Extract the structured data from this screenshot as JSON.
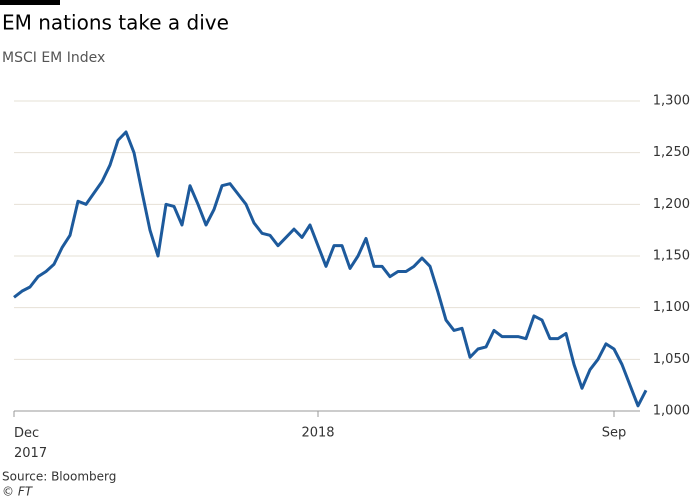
{
  "chart_data": {
    "type": "line",
    "title": "EM nations take a dive",
    "subtitle": "MSCI EM Index",
    "source": "Source: Bloomberg",
    "credit": "© FT",
    "categories": [
      "Dec 2017",
      null,
      null,
      null,
      null,
      null,
      null,
      null,
      null,
      null,
      null,
      null,
      null,
      null,
      null,
      null,
      null,
      null,
      null,
      null,
      null,
      null,
      null,
      null,
      null,
      null,
      null,
      null,
      null,
      null,
      null,
      null,
      null,
      null,
      null,
      null,
      null,
      null,
      "2018",
      null,
      null,
      null,
      null,
      null,
      null,
      null,
      null,
      null,
      null,
      null,
      null,
      null,
      null,
      null,
      null,
      null,
      null,
      null,
      null,
      null,
      null,
      null,
      null,
      null,
      null,
      null,
      null,
      null,
      null,
      null,
      null,
      null,
      null,
      null,
      null,
      "Sep",
      null,
      null,
      null,
      null
    ],
    "series": [
      {
        "name": "MSCI EM Index",
        "color": "#1d5a9c",
        "values": [
          1110,
          1116,
          1120,
          1130,
          1135,
          1142,
          1158,
          1170,
          1203,
          1200,
          1211,
          1222,
          1238,
          1262,
          1270,
          1250,
          1212,
          1175,
          1150,
          1200,
          1198,
          1180,
          1218,
          1200,
          1180,
          1195,
          1218,
          1220,
          1210,
          1200,
          1182,
          1172,
          1170,
          1160,
          1168,
          1176,
          1168,
          1180,
          1160,
          1140,
          1160,
          1160,
          1138,
          1150,
          1167,
          1140,
          1140,
          1130,
          1135,
          1135,
          1140,
          1148,
          1140,
          1115,
          1088,
          1078,
          1080,
          1052,
          1060,
          1062,
          1078,
          1072,
          1072,
          1072,
          1070,
          1092,
          1088,
          1070,
          1070,
          1075,
          1045,
          1022,
          1040,
          1050,
          1065,
          1060,
          1045,
          1025,
          1005,
          1020
        ]
      }
    ],
    "ylim": [
      1000,
      1300
    ],
    "yticks": [
      {
        "value": 1000,
        "label": "1,000"
      },
      {
        "value": 1050,
        "label": "1,050"
      },
      {
        "value": 1100,
        "label": "1,100"
      },
      {
        "value": 1150,
        "label": "1,150"
      },
      {
        "value": 1200,
        "label": "1,200"
      },
      {
        "value": 1250,
        "label": "1,250"
      },
      {
        "value": 1300,
        "label": "1,300"
      }
    ],
    "grid": true
  }
}
